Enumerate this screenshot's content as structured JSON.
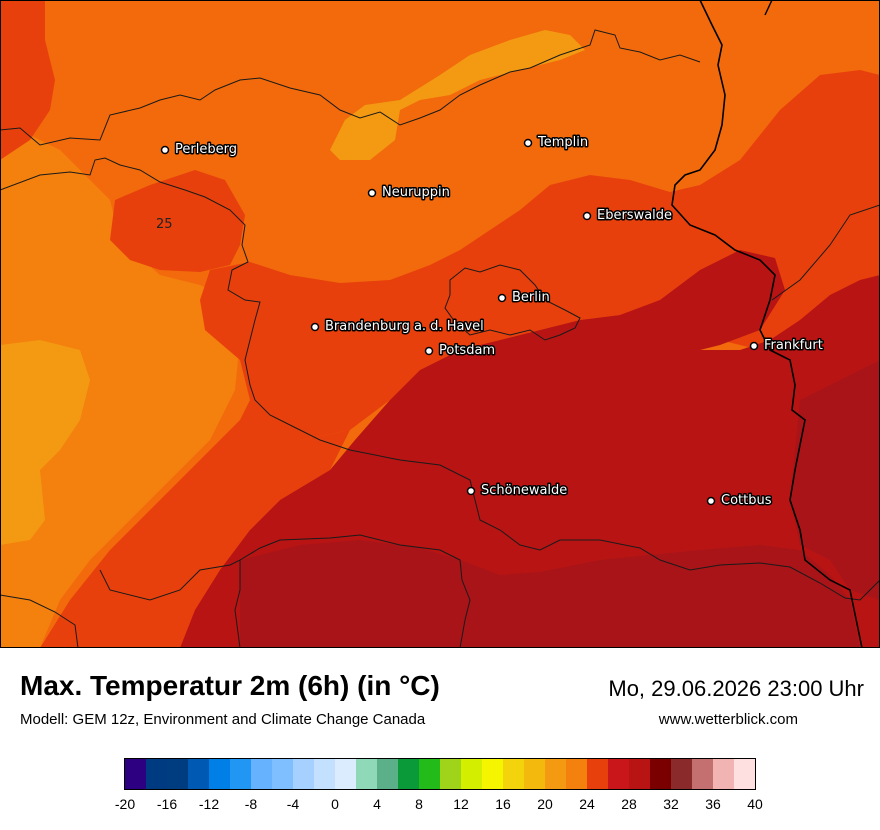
{
  "header": {
    "title": "Max. Temperatur 2m (6h) (in °C)",
    "model": "Modell: GEM 12z, Environment and Climate Change Canada",
    "datetime": "Mo, 29.06.2026 23:00 Uhr",
    "website": "www.wetterblick.com"
  },
  "map": {
    "cities": [
      {
        "name": "Perleberg"
      },
      {
        "name": "Templin"
      },
      {
        "name": "Neuruppin"
      },
      {
        "name": "Eberswalde"
      },
      {
        "name": "Berlin"
      },
      {
        "name": "Brandenburg a. d. Havel"
      },
      {
        "name": "Potsdam"
      },
      {
        "name": "Frankfurt"
      },
      {
        "name": "Schönewalde"
      },
      {
        "name": "Cottbus"
      }
    ],
    "contour_label": "25",
    "colors": {
      "band_18_20": "#f39a12",
      "band_20_22": "#f4800e",
      "band_22_24": "#f26a0c",
      "band_24_26": "#e8400c",
      "band_26_28": "#b81414",
      "band_28_30": "#a81418"
    }
  },
  "legend": {
    "ticks": [
      "-20",
      "-16",
      "-12",
      "-8",
      "-4",
      "0",
      "4",
      "8",
      "12",
      "16",
      "20",
      "24",
      "28",
      "32",
      "36",
      "40"
    ],
    "colors": [
      "#2c0080",
      "#003a80",
      "#003c80",
      "#0059b3",
      "#0080e6",
      "#2196f3",
      "#66b2ff",
      "#80bfff",
      "#a6d0ff",
      "#c4e0ff",
      "#dcecff",
      "#8fd9b8",
      "#5bb08a",
      "#0a9a3a",
      "#22bb1a",
      "#9fd41a",
      "#d4ee00",
      "#f5f500",
      "#f3d30c",
      "#f3b90c",
      "#f39a12",
      "#f4800e",
      "#e8400c",
      "#c8161a",
      "#b81414",
      "#7a0000",
      "#8b2a2a",
      "#c47070",
      "#f2b3b3",
      "#ffe0e0"
    ]
  }
}
